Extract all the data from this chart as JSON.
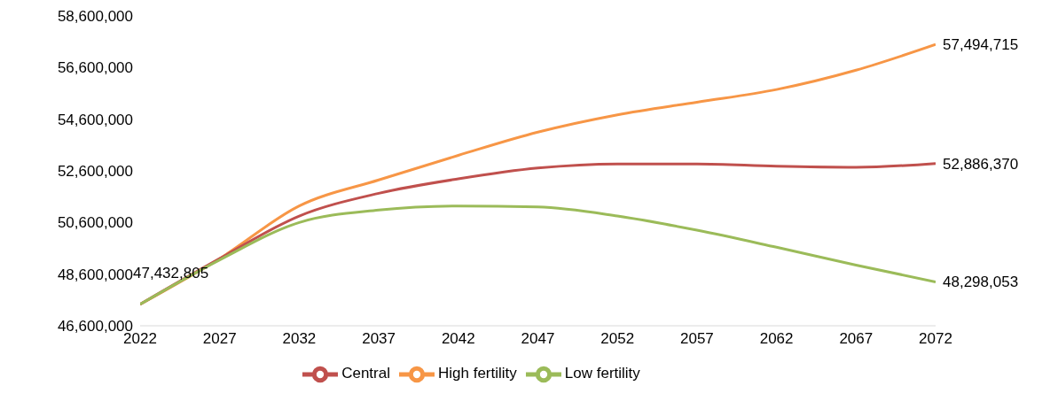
{
  "chart_data": {
    "type": "line",
    "x": [
      2022,
      2027,
      2032,
      2037,
      2042,
      2047,
      2052,
      2057,
      2062,
      2067,
      2072
    ],
    "series": [
      {
        "name": "High fertility",
        "color": "#f79646",
        "values": [
          47430000,
          49200000,
          51240000,
          52250000,
          53200000,
          54100000,
          54770000,
          55260000,
          55750000,
          56500000,
          57494715
        ],
        "value_labels": [
          null,
          null,
          null,
          null,
          null,
          null,
          null,
          null,
          null,
          null,
          "57,494,715"
        ]
      },
      {
        "name": "Central",
        "color": "#c0504d",
        "values": [
          47432805,
          49200000,
          50850000,
          51730000,
          52290000,
          52710000,
          52870000,
          52870000,
          52780000,
          52740000,
          52886370
        ],
        "value_labels": [
          "47,432,805",
          null,
          null,
          null,
          null,
          null,
          null,
          null,
          null,
          null,
          "52,886,370"
        ]
      },
      {
        "name": "Low fertility",
        "color": "#9bbb59",
        "values": [
          47430000,
          49150000,
          50600000,
          51080000,
          51240000,
          51200000,
          50850000,
          50300000,
          49640000,
          48950000,
          48298053
        ],
        "value_labels": [
          null,
          null,
          null,
          null,
          null,
          null,
          null,
          null,
          null,
          null,
          "48,298,053"
        ]
      }
    ],
    "xlim": [
      2022,
      2072
    ],
    "xticks": [
      2022,
      2027,
      2032,
      2037,
      2042,
      2047,
      2052,
      2057,
      2062,
      2067,
      2072
    ],
    "ylim": [
      46600000,
      58600000
    ],
    "yticks": [
      {
        "value": 46600000,
        "label": "46,600,000"
      },
      {
        "value": 48600000,
        "label": "48,600,000"
      },
      {
        "value": 50600000,
        "label": "50,600,000"
      },
      {
        "value": 52600000,
        "label": "52,600,000"
      },
      {
        "value": 54600000,
        "label": "54,600,000"
      },
      {
        "value": 56600000,
        "label": "56,600,000"
      },
      {
        "value": 58600000,
        "label": "58,600,000"
      }
    ],
    "grid": false,
    "legend": "bottom",
    "marker": "none",
    "line_style": "solid"
  }
}
